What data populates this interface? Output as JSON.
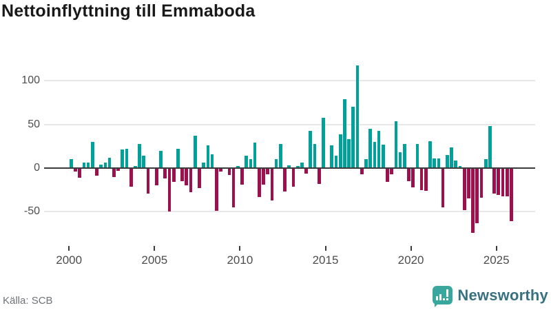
{
  "title": "Nettoinflyttning till Emmaboda",
  "footer": {
    "source_label": "Källa: SCB",
    "logo_text": "Newsworthy",
    "logo_icon": "speech-bubble-bar-chart-icon"
  },
  "colors": {
    "positive": "#00a19a",
    "negative": "#9b104d",
    "axis_line": "#3b3b3b",
    "gridline": "#e7e7e7",
    "axis_text": "#4d4d4d",
    "title_text": "#191919",
    "source_text": "#6f7378",
    "logo_teal": "#3aa79f",
    "logo_text_color": "#387180"
  },
  "chart_data": {
    "type": "bar",
    "title": "Nettoinflyttning till Emmaboda",
    "frequency": "quarterly",
    "start_year": 2000,
    "start_quarter": 1,
    "values": [
      10,
      -4,
      -11,
      6,
      6,
      30,
      -9,
      4,
      6,
      12,
      -10,
      -3,
      21,
      22,
      -21,
      2,
      28,
      14,
      -29,
      0,
      -20,
      20,
      -12,
      -50,
      -16,
      22,
      -15,
      -20,
      -28,
      37,
      -23,
      6,
      26,
      16,
      -49,
      -4,
      0,
      -8,
      -45,
      2,
      -19,
      14,
      10,
      29,
      -33,
      -19,
      -7,
      -37,
      10,
      28,
      -27,
      3,
      -21,
      2,
      6,
      -6,
      43,
      28,
      -18,
      58,
      0,
      26,
      14,
      39,
      79,
      33,
      70,
      118,
      -7,
      10,
      45,
      30,
      43,
      27,
      -16,
      -7,
      54,
      18,
      28,
      -15,
      -22,
      28,
      -25,
      -26,
      31,
      11,
      11,
      -45,
      15,
      24,
      9,
      2,
      -48,
      -35,
      -74,
      -63,
      -34,
      10,
      48,
      -29,
      -31,
      -32,
      -32,
      -61
    ],
    "x_tick_labels": [
      "2000",
      "2005",
      "2010",
      "2015",
      "2020",
      "2025"
    ],
    "y_ticks": [
      100,
      50,
      0,
      -50
    ],
    "ylim": [
      -80,
      125
    ],
    "grid": true,
    "legend": "none",
    "positive_color": "#00a19a",
    "negative_color": "#9b104d"
  }
}
